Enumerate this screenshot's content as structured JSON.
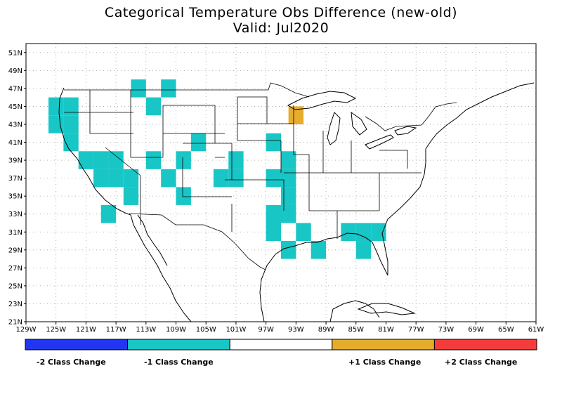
{
  "title": {
    "line1": "Categorical Temperature Obs Difference (new-old)",
    "line2": "Valid: Jul2020"
  },
  "axes": {
    "lat_labels": [
      "51N",
      "49N",
      "47N",
      "45N",
      "43N",
      "41N",
      "39N",
      "37N",
      "35N",
      "33N",
      "31N",
      "29N",
      "27N",
      "25N",
      "23N",
      "21N"
    ],
    "lon_labels": [
      "129W",
      "125W",
      "121W",
      "117W",
      "113W",
      "109W",
      "105W",
      "101W",
      "97W",
      "93W",
      "89W",
      "85W",
      "81W",
      "77W",
      "73W",
      "69W",
      "65W",
      "61W"
    ],
    "lon_range": [
      -129,
      -61
    ],
    "lat_range": [
      21,
      52
    ]
  },
  "colors": {
    "minus2": "#2236f2",
    "minus1": "#18c6c6",
    "none": "#ffffff",
    "plus1": "#e6ad2c",
    "plus2": "#f43c3c",
    "boundary": "#000000",
    "grid": "#a0a0a0"
  },
  "legend": {
    "categories": [
      {
        "key": "minus2",
        "label": "-2 Class Change"
      },
      {
        "key": "minus1",
        "label": "-1 Class Change"
      },
      {
        "key": "none",
        "label": ""
      },
      {
        "key": "plus1",
        "label": "+1 Class Change"
      },
      {
        "key": "plus2",
        "label": "+2 Class Change"
      }
    ]
  },
  "cells": {
    "minus1": [
      [
        -125,
        45
      ],
      [
        -123,
        45
      ],
      [
        -125,
        43
      ],
      [
        -123,
        43
      ],
      [
        -123,
        41
      ],
      [
        -114,
        47
      ],
      [
        -110,
        47
      ],
      [
        -112,
        45
      ],
      [
        -121,
        39
      ],
      [
        -119,
        39
      ],
      [
        -117,
        39
      ],
      [
        -119,
        37
      ],
      [
        -117,
        37
      ],
      [
        -115,
        37
      ],
      [
        -115,
        35
      ],
      [
        -112,
        39
      ],
      [
        -108,
        39
      ],
      [
        -110,
        37
      ],
      [
        -103,
        37
      ],
      [
        -101,
        37
      ],
      [
        -101,
        39
      ],
      [
        -108,
        35
      ],
      [
        -106,
        41
      ],
      [
        -96,
        41
      ],
      [
        -96,
        37
      ],
      [
        -94,
        39
      ],
      [
        -94,
        37
      ],
      [
        -94,
        35
      ],
      [
        -94,
        33
      ],
      [
        -96,
        33
      ],
      [
        -96,
        31
      ],
      [
        -92,
        31
      ],
      [
        -94,
        29
      ],
      [
        -90,
        29
      ],
      [
        -118,
        33
      ],
      [
        -86,
        31
      ],
      [
        -84,
        31
      ],
      [
        -82,
        31
      ],
      [
        -84,
        29
      ]
    ],
    "plus1": [
      [
        -93,
        44
      ]
    ]
  }
}
